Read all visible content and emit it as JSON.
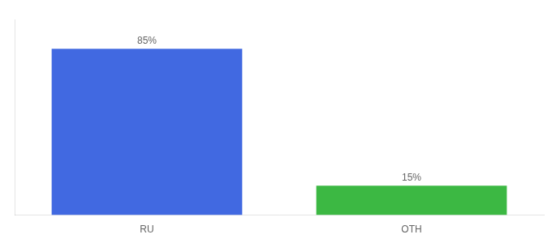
{
  "chart_data": {
    "type": "bar",
    "categories": [
      "RU",
      "OTH"
    ],
    "values": [
      85,
      15
    ],
    "value_labels": [
      "85%",
      "15%"
    ],
    "colors": [
      "#4169e1",
      "#3cb843"
    ],
    "ylim": [
      0,
      100
    ],
    "data_labels": true,
    "tick_labels": "x",
    "grid": false
  }
}
